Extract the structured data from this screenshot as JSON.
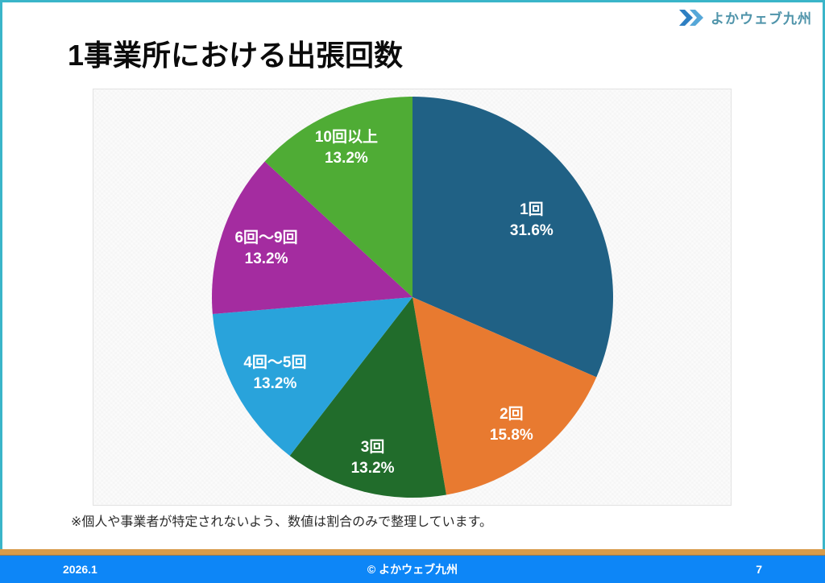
{
  "slide": {
    "title": "1事業所における出張回数",
    "note": "※個人や事業者が特定されないよう、数値は割合のみで整理しています。",
    "logo_text": "よかウェブ九州",
    "footer": {
      "date": "2026.1",
      "copyright": "© よかウェブ九州",
      "page": "7"
    }
  },
  "colors": {
    "border_teal": "#3ab5c9",
    "footer_blue": "#0d86f7",
    "footer_accent": "#d79b4a",
    "logo_text": "#4f94aa",
    "logo_chevron_dark": "#2e7fc2",
    "logo_chevron_light": "#56a7d8",
    "title_text": "#0b0b0b"
  },
  "chart_data": {
    "type": "pie",
    "title": "1事業所における出張回数",
    "labels": [
      "1回",
      "2回",
      "3回",
      "4回～5回",
      "6回～9回",
      "10回以上"
    ],
    "values": [
      31.6,
      15.8,
      13.2,
      13.2,
      13.2,
      13.2
    ],
    "percent_labels": [
      "31.6%",
      "15.8%",
      "13.2%",
      "13.2%",
      "13.2%",
      "13.2%"
    ],
    "colors": [
      "#206185",
      "#e87a30",
      "#216c2b",
      "#29a3db",
      "#a42ca0",
      "#4fac35"
    ],
    "start_angle_deg": 0,
    "direction": "clockwise",
    "label_radius_fraction": [
      0.71,
      0.8,
      0.82,
      0.78,
      0.77,
      0.82
    ],
    "label_color": "#ffffff",
    "legend": "none"
  }
}
